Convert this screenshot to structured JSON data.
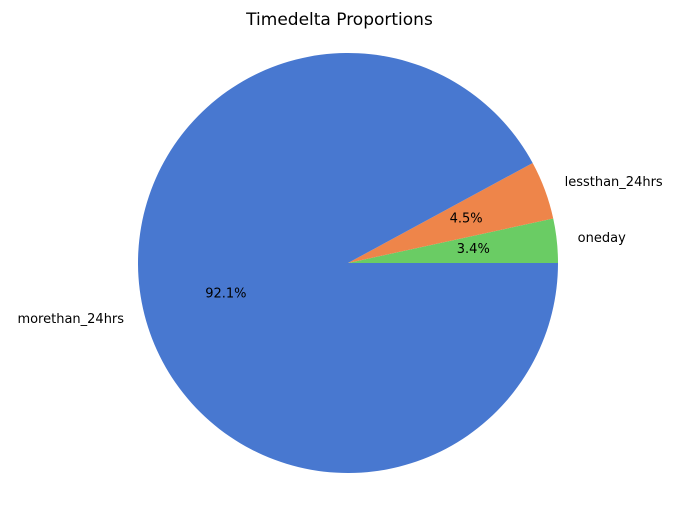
{
  "chart_data": {
    "type": "pie",
    "title": "Timedelta Proportions",
    "categories": [
      "oneday",
      "lessthan_24hrs",
      "morethan_24hrs"
    ],
    "values": [
      3.4,
      4.5,
      92.1
    ],
    "percent_labels": [
      "3.4%",
      "4.5%",
      "92.1%"
    ],
    "colors": [
      "#6acc64",
      "#ee854a",
      "#4878d0"
    ],
    "start_angle_deg": 0,
    "direction": "counterclockwise",
    "legend": "none"
  }
}
